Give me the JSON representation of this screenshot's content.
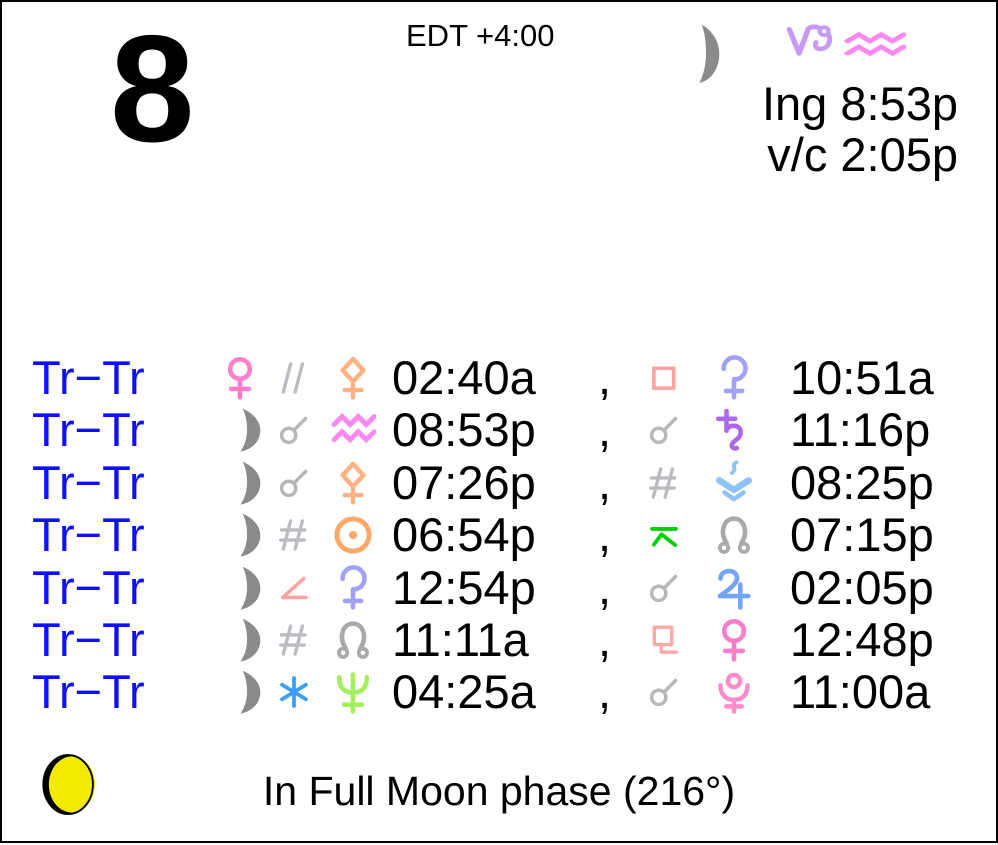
{
  "header": {
    "day_number": "8",
    "timezone": "EDT +4:00",
    "moon_icon": "moon",
    "ingress_from_sign_icon": "capricorn",
    "ingress_to_sign_icon": "aquarius",
    "ingress_label": "Ing 8:53p",
    "void_of_course_label": "v/c 2:05p"
  },
  "aspect_rows": [
    {
      "label": "Tr−Tr",
      "body1": "venus",
      "aspect1": "parallel",
      "point1": "pallas",
      "time1": "02:40a",
      "separator": ",",
      "aspect2": "square",
      "point2": "ceres",
      "time2": "10:51a"
    },
    {
      "label": "Tr−Tr",
      "body1": "moon",
      "aspect1": "conjunction",
      "point1": "aquarius",
      "time1": "08:53p",
      "separator": ",",
      "aspect2": "conjunction",
      "point2": "saturn",
      "time2": "11:16p"
    },
    {
      "label": "Tr−Tr",
      "body1": "moon",
      "aspect1": "conjunction",
      "point1": "pallas",
      "time1": "07:26p",
      "separator": ",",
      "aspect2": "contraparallel",
      "point2": "vesta",
      "time2": "08:25p"
    },
    {
      "label": "Tr−Tr",
      "body1": "moon",
      "aspect1": "contraparallel",
      "point1": "sun",
      "time1": "06:54p",
      "separator": ",",
      "aspect2": "quincunx",
      "point2": "north-node",
      "time2": "07:15p"
    },
    {
      "label": "Tr−Tr",
      "body1": "moon",
      "aspect1": "semisquare",
      "point1": "ceres",
      "time1": "12:54p",
      "separator": ",",
      "aspect2": "conjunction",
      "point2": "jupiter",
      "time2": "02:05p"
    },
    {
      "label": "Tr−Tr",
      "body1": "moon",
      "aspect1": "contraparallel",
      "point1": "north-node",
      "time1": "11:11a",
      "separator": ",",
      "aspect2": "sesquiquadrate",
      "point2": "venus",
      "time2": "12:48p"
    },
    {
      "label": "Tr−Tr",
      "body1": "moon",
      "aspect1": "sextile",
      "point1": "neptune",
      "time1": "04:25a",
      "separator": ",",
      "aspect2": "conjunction",
      "point2": "pluto",
      "time2": "11:00a"
    }
  ],
  "footer": {
    "phase_icon": "full-moon",
    "phase_label": "In Full Moon phase (216°)"
  },
  "glyph_colors": {
    "moon": "#8b8b8b",
    "venus": "#fc7dc9",
    "pallas": "#ffb183",
    "ceres": "#a2a1f8",
    "saturn": "#ab68ef",
    "sun": "#ffa767",
    "vesta": "#8fc2f8",
    "north-node": "#a9a9a9",
    "jupiter": "#72a4f7",
    "neptune": "#a3ef5d",
    "pluto": "#fc8bc9",
    "aquarius": "#fb87f0",
    "capricorn": "#c79af7",
    "parallel": "#bbbcc2",
    "contraparallel": "#bbbcc2",
    "conjunction": "#b7b7b7",
    "square": "#ffa2a2",
    "semisquare": "#ffa2a2",
    "sesquiquadrate": "#ffa8a4",
    "sextile": "#3d9df3",
    "quincunx": "#01cf01"
  },
  "colors": {
    "label_blue": "#0f0fff",
    "text_black": "#000000",
    "phase_yellow": "#f2ea00",
    "border_black": "#000000"
  }
}
